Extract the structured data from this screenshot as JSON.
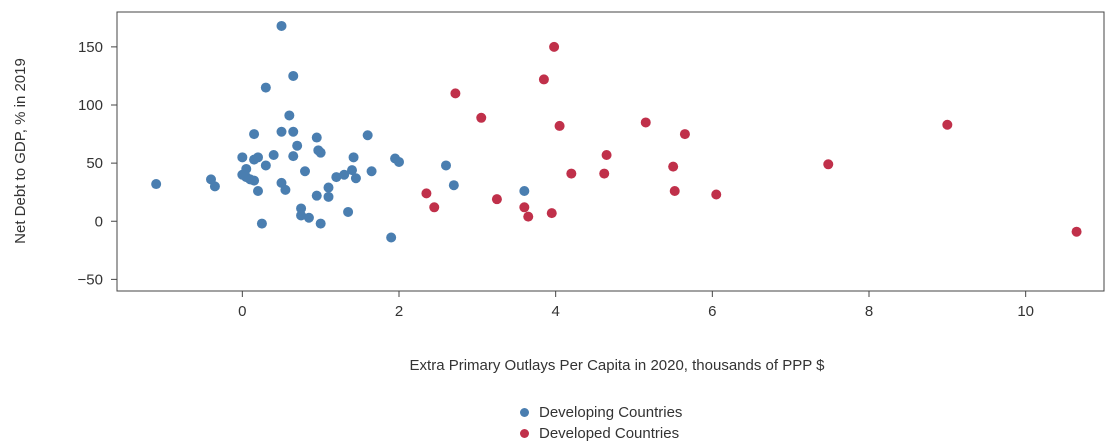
{
  "chart_data": {
    "type": "scatter",
    "xlabel": "Extra Primary Outlays Per Capita in 2020, thousands of PPP $",
    "ylabel": "Net Debt to GDP, % in 2019",
    "xlim": [
      -1.6,
      11.0
    ],
    "ylim": [
      -60,
      180
    ],
    "xticks": [
      0,
      2,
      4,
      6,
      8,
      10
    ],
    "yticks": [
      -50,
      0,
      50,
      100,
      150
    ],
    "grid": false,
    "legend_position": "bottom-center",
    "series": [
      {
        "name": "Developing Countries",
        "color": "#4a7eb0",
        "points": [
          [
            -1.1,
            32
          ],
          [
            -0.4,
            36
          ],
          [
            -0.35,
            30
          ],
          [
            0.0,
            55
          ],
          [
            0.0,
            40
          ],
          [
            0.05,
            45
          ],
          [
            0.05,
            38
          ],
          [
            0.1,
            36
          ],
          [
            0.15,
            75
          ],
          [
            0.15,
            53
          ],
          [
            0.15,
            35
          ],
          [
            0.2,
            55
          ],
          [
            0.2,
            26
          ],
          [
            0.25,
            -2
          ],
          [
            0.3,
            48
          ],
          [
            0.3,
            115
          ],
          [
            0.4,
            57
          ],
          [
            0.5,
            168
          ],
          [
            0.5,
            77
          ],
          [
            0.5,
            33
          ],
          [
            0.55,
            27
          ],
          [
            0.6,
            91
          ],
          [
            0.65,
            125
          ],
          [
            0.65,
            77
          ],
          [
            0.65,
            56
          ],
          [
            0.7,
            65
          ],
          [
            0.75,
            11
          ],
          [
            0.75,
            5
          ],
          [
            0.8,
            43
          ],
          [
            0.85,
            3
          ],
          [
            0.95,
            72
          ],
          [
            0.95,
            22
          ],
          [
            0.97,
            61
          ],
          [
            1.0,
            59
          ],
          [
            1.0,
            -2
          ],
          [
            1.1,
            29
          ],
          [
            1.1,
            21
          ],
          [
            1.2,
            38
          ],
          [
            1.3,
            40
          ],
          [
            1.35,
            8
          ],
          [
            1.4,
            44
          ],
          [
            1.42,
            55
          ],
          [
            1.45,
            37
          ],
          [
            1.6,
            74
          ],
          [
            1.65,
            43
          ],
          [
            1.9,
            -14
          ],
          [
            1.95,
            54
          ],
          [
            2.0,
            51
          ],
          [
            2.6,
            48
          ],
          [
            2.7,
            31
          ],
          [
            3.6,
            26
          ]
        ]
      },
      {
        "name": "Developed Countries",
        "color": "#c0304a",
        "points": [
          [
            2.35,
            24
          ],
          [
            2.45,
            12
          ],
          [
            2.72,
            110
          ],
          [
            3.05,
            89
          ],
          [
            3.25,
            19
          ],
          [
            3.6,
            12
          ],
          [
            3.65,
            4
          ],
          [
            3.85,
            122
          ],
          [
            3.95,
            7
          ],
          [
            3.98,
            150
          ],
          [
            4.05,
            82
          ],
          [
            4.2,
            41
          ],
          [
            4.62,
            41
          ],
          [
            4.65,
            57
          ],
          [
            5.15,
            85
          ],
          [
            5.5,
            47
          ],
          [
            5.52,
            26
          ],
          [
            5.65,
            75
          ],
          [
            6.05,
            23
          ],
          [
            7.48,
            49
          ],
          [
            9.0,
            83
          ],
          [
            10.65,
            -9
          ]
        ]
      }
    ]
  }
}
